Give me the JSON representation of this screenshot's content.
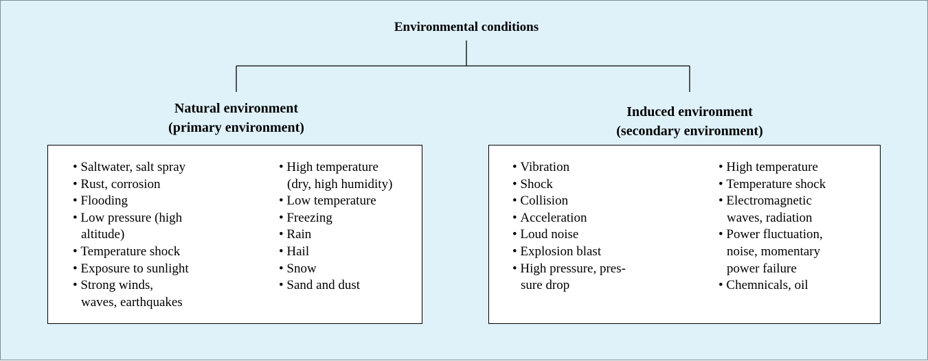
{
  "title": "Environmental conditions",
  "branches": [
    {
      "heading": [
        "Natural environment",
        "(primary environment)"
      ],
      "columns": [
        [
          [
            "Saltwater, salt spray"
          ],
          [
            "Rust, corrosion"
          ],
          [
            "Flooding"
          ],
          [
            "Low pressure (high",
            "altitude)"
          ],
          [
            "Temperature shock"
          ],
          [
            "Exposure to sunlight"
          ],
          [
            "Strong winds,",
            "waves, earthquakes"
          ]
        ],
        [
          [
            "High temperature",
            "(dry, high humidity)"
          ],
          [
            "Low temperature"
          ],
          [
            "Freezing"
          ],
          [
            "Rain"
          ],
          [
            "Hail"
          ],
          [
            "Snow"
          ],
          [
            "Sand and dust"
          ]
        ]
      ]
    },
    {
      "heading": [
        "Induced environment",
        "(secondary environment)"
      ],
      "columns": [
        [
          [
            "Vibration"
          ],
          [
            "Shock"
          ],
          [
            "Collision"
          ],
          [
            "Acceleration"
          ],
          [
            "Loud noise"
          ],
          [
            "Explosion blast"
          ],
          [
            "High pressure, pres-",
            "sure drop"
          ]
        ],
        [
          [
            "High temperature"
          ],
          [
            "Temperature shock"
          ],
          [
            "Electromagnetic",
            "waves, radiation"
          ],
          [
            "Power fluctuation,",
            "noise, momentary",
            "power failure"
          ],
          [
            "Chemnicals, oil"
          ]
        ]
      ]
    }
  ]
}
